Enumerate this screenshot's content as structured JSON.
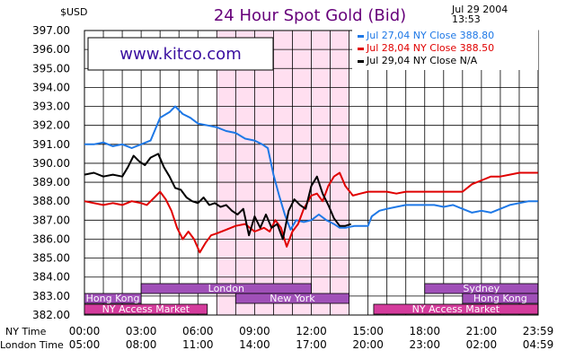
{
  "header": {
    "currency": "$USD",
    "title": "24 Hour Spot Gold (Bid)",
    "date": "Jul 29 2004",
    "time": "13:53"
  },
  "watermark": "www.kitco.com",
  "colors": {
    "title": "#66007a",
    "jul27": "#1e78e6",
    "jul28": "#e00000",
    "jul29": "#000000",
    "london_shade": "#ffdff0",
    "session_bar": "#a050b8",
    "session_bar_pink": "#d43c9c"
  },
  "chart_data": {
    "type": "line",
    "title": "24 Hour Spot Gold (Bid)",
    "ylabel": "$USD",
    "ylim": [
      382,
      397
    ],
    "y_ticks": [
      "397.00",
      "396.00",
      "395.00",
      "394.00",
      "393.00",
      "392.00",
      "391.00",
      "390.00",
      "389.00",
      "388.00",
      "387.00",
      "386.00",
      "385.00",
      "384.00",
      "383.00",
      "382.00"
    ],
    "x_range_hours": [
      0,
      24
    ],
    "x_ticks_ny": [
      "00:00",
      "03:00",
      "06:00",
      "09:00",
      "12:00",
      "15:00",
      "18:00",
      "21:00",
      "23:59"
    ],
    "x_ticks_london": [
      "05:00",
      "08:00",
      "11:00",
      "14:00",
      "17:00",
      "20:00",
      "23:00",
      "02:00",
      "04:59"
    ],
    "x_row_labels": {
      "ny": "NY Time",
      "london": "London Time"
    },
    "legend_position": "top-right",
    "series": [
      {
        "name": "Jul 27,04 NY Close 388.80",
        "label": "Jul 27,04  NY  Close  388.80",
        "color": "#1e78e6",
        "points": [
          [
            0,
            391.0
          ],
          [
            0.5,
            391.0
          ],
          [
            1.0,
            391.1
          ],
          [
            1.5,
            390.9
          ],
          [
            2.0,
            391.0
          ],
          [
            2.5,
            390.8
          ],
          [
            3.0,
            391.0
          ],
          [
            3.5,
            391.2
          ],
          [
            4.0,
            392.4
          ],
          [
            4.5,
            392.7
          ],
          [
            4.8,
            393.0
          ],
          [
            5.2,
            392.6
          ],
          [
            5.6,
            392.4
          ],
          [
            6.0,
            392.1
          ],
          [
            6.5,
            392.0
          ],
          [
            7.0,
            391.9
          ],
          [
            7.5,
            391.7
          ],
          [
            8.0,
            391.6
          ],
          [
            8.5,
            391.3
          ],
          [
            9.0,
            391.2
          ],
          [
            9.4,
            391.0
          ],
          [
            9.7,
            390.8
          ],
          [
            10.0,
            389.4
          ],
          [
            10.3,
            388.3
          ],
          [
            10.6,
            387.3
          ],
          [
            10.9,
            386.5
          ],
          [
            11.2,
            387.0
          ],
          [
            11.6,
            386.9
          ],
          [
            12.0,
            387.0
          ],
          [
            12.4,
            387.3
          ],
          [
            12.8,
            387.0
          ],
          [
            13.2,
            386.8
          ],
          [
            13.5,
            386.6
          ],
          [
            13.8,
            386.6
          ],
          [
            14.3,
            386.7
          ],
          [
            15.0,
            386.7
          ],
          [
            15.2,
            387.2
          ],
          [
            15.6,
            387.5
          ],
          [
            16.0,
            387.6
          ],
          [
            16.5,
            387.7
          ],
          [
            17.0,
            387.8
          ],
          [
            17.5,
            387.8
          ],
          [
            18.0,
            387.8
          ],
          [
            18.5,
            387.8
          ],
          [
            19.0,
            387.7
          ],
          [
            19.5,
            387.8
          ],
          [
            20.0,
            387.6
          ],
          [
            20.5,
            387.4
          ],
          [
            21.0,
            387.5
          ],
          [
            21.5,
            387.4
          ],
          [
            22.0,
            387.6
          ],
          [
            22.5,
            387.8
          ],
          [
            23.0,
            387.9
          ],
          [
            23.5,
            388.0
          ],
          [
            23.99,
            388.0
          ]
        ]
      },
      {
        "name": "Jul 28,04 NY Close 388.50",
        "label": "Jul 28,04  NY  Close  388.50",
        "color": "#e00000",
        "points": [
          [
            0,
            388.0
          ],
          [
            0.5,
            387.9
          ],
          [
            1.0,
            387.8
          ],
          [
            1.5,
            387.9
          ],
          [
            2.0,
            387.8
          ],
          [
            2.5,
            388.0
          ],
          [
            3.0,
            387.9
          ],
          [
            3.3,
            387.8
          ],
          [
            3.7,
            388.2
          ],
          [
            4.0,
            388.5
          ],
          [
            4.3,
            388.1
          ],
          [
            4.6,
            387.5
          ],
          [
            4.9,
            386.6
          ],
          [
            5.2,
            386.0
          ],
          [
            5.5,
            386.4
          ],
          [
            5.8,
            386.0
          ],
          [
            6.1,
            385.3
          ],
          [
            6.4,
            385.8
          ],
          [
            6.7,
            386.2
          ],
          [
            7.0,
            386.3
          ],
          [
            7.5,
            386.5
          ],
          [
            8.0,
            386.7
          ],
          [
            8.5,
            386.8
          ],
          [
            9.0,
            386.4
          ],
          [
            9.5,
            386.6
          ],
          [
            9.8,
            386.4
          ],
          [
            10.1,
            387.0
          ],
          [
            10.4,
            386.6
          ],
          [
            10.7,
            385.6
          ],
          [
            11.0,
            386.4
          ],
          [
            11.3,
            386.8
          ],
          [
            11.6,
            387.6
          ],
          [
            12.0,
            388.3
          ],
          [
            12.3,
            388.4
          ],
          [
            12.6,
            388.0
          ],
          [
            12.9,
            388.8
          ],
          [
            13.2,
            389.3
          ],
          [
            13.5,
            389.5
          ],
          [
            13.8,
            388.8
          ],
          [
            14.2,
            388.3
          ],
          [
            14.6,
            388.4
          ],
          [
            15.0,
            388.5
          ],
          [
            15.5,
            388.5
          ],
          [
            16.0,
            388.5
          ],
          [
            16.5,
            388.4
          ],
          [
            17.0,
            388.5
          ],
          [
            17.5,
            388.5
          ],
          [
            18.0,
            388.5
          ],
          [
            18.5,
            388.5
          ],
          [
            19.0,
            388.5
          ],
          [
            19.5,
            388.5
          ],
          [
            20.0,
            388.5
          ],
          [
            20.5,
            388.9
          ],
          [
            21.0,
            389.1
          ],
          [
            21.5,
            389.3
          ],
          [
            22.0,
            389.3
          ],
          [
            22.5,
            389.4
          ],
          [
            23.0,
            389.5
          ],
          [
            23.5,
            389.5
          ],
          [
            23.99,
            389.5
          ]
        ]
      },
      {
        "name": "Jul 29,04 NY Close N/A",
        "label": "Jul 29,04  NY  Close  N/A",
        "color": "#000000",
        "points": [
          [
            0,
            389.4
          ],
          [
            0.5,
            389.5
          ],
          [
            1.0,
            389.3
          ],
          [
            1.5,
            389.4
          ],
          [
            2.0,
            389.3
          ],
          [
            2.3,
            389.8
          ],
          [
            2.6,
            390.4
          ],
          [
            2.9,
            390.1
          ],
          [
            3.2,
            389.9
          ],
          [
            3.5,
            390.3
          ],
          [
            3.9,
            390.5
          ],
          [
            4.2,
            389.8
          ],
          [
            4.5,
            389.3
          ],
          [
            4.8,
            388.7
          ],
          [
            5.1,
            388.6
          ],
          [
            5.4,
            388.2
          ],
          [
            5.7,
            388.0
          ],
          [
            6.0,
            387.9
          ],
          [
            6.3,
            388.2
          ],
          [
            6.6,
            387.8
          ],
          [
            6.9,
            387.9
          ],
          [
            7.2,
            387.7
          ],
          [
            7.5,
            387.8
          ],
          [
            7.8,
            387.5
          ],
          [
            8.1,
            387.3
          ],
          [
            8.4,
            387.6
          ],
          [
            8.7,
            386.2
          ],
          [
            9.0,
            387.2
          ],
          [
            9.3,
            386.6
          ],
          [
            9.6,
            387.3
          ],
          [
            9.9,
            386.6
          ],
          [
            10.2,
            386.8
          ],
          [
            10.5,
            386.0
          ],
          [
            10.8,
            387.5
          ],
          [
            11.1,
            388.1
          ],
          [
            11.4,
            387.8
          ],
          [
            11.7,
            387.6
          ],
          [
            12.0,
            388.8
          ],
          [
            12.3,
            389.3
          ],
          [
            12.6,
            388.4
          ],
          [
            12.9,
            387.8
          ],
          [
            13.2,
            387.1
          ],
          [
            13.5,
            386.7
          ],
          [
            13.8,
            386.7
          ],
          [
            14.1,
            386.8
          ]
        ]
      }
    ],
    "sessions": [
      {
        "label": "London",
        "row": 1,
        "start": 3.0,
        "end": 12.0
      },
      {
        "label": "Sydney",
        "row": 1,
        "start": 18.0,
        "end": 23.99
      },
      {
        "label": "Hong  Kong",
        "row": 2,
        "start": 0.0,
        "end": 3.0
      },
      {
        "label": "New  York",
        "row": 2,
        "start": 8.0,
        "end": 14.0
      },
      {
        "label": "Hong  Kong",
        "row": 2,
        "start": 20.0,
        "end": 23.99
      },
      {
        "label": "NY  Access  Market",
        "row": 3,
        "start": 0.0,
        "end": 6.5
      },
      {
        "label": "NY  Access  Market",
        "row": 3,
        "start": 15.3,
        "end": 23.99
      }
    ],
    "shaded_period": {
      "start": 7.0,
      "end": 14.0
    }
  }
}
